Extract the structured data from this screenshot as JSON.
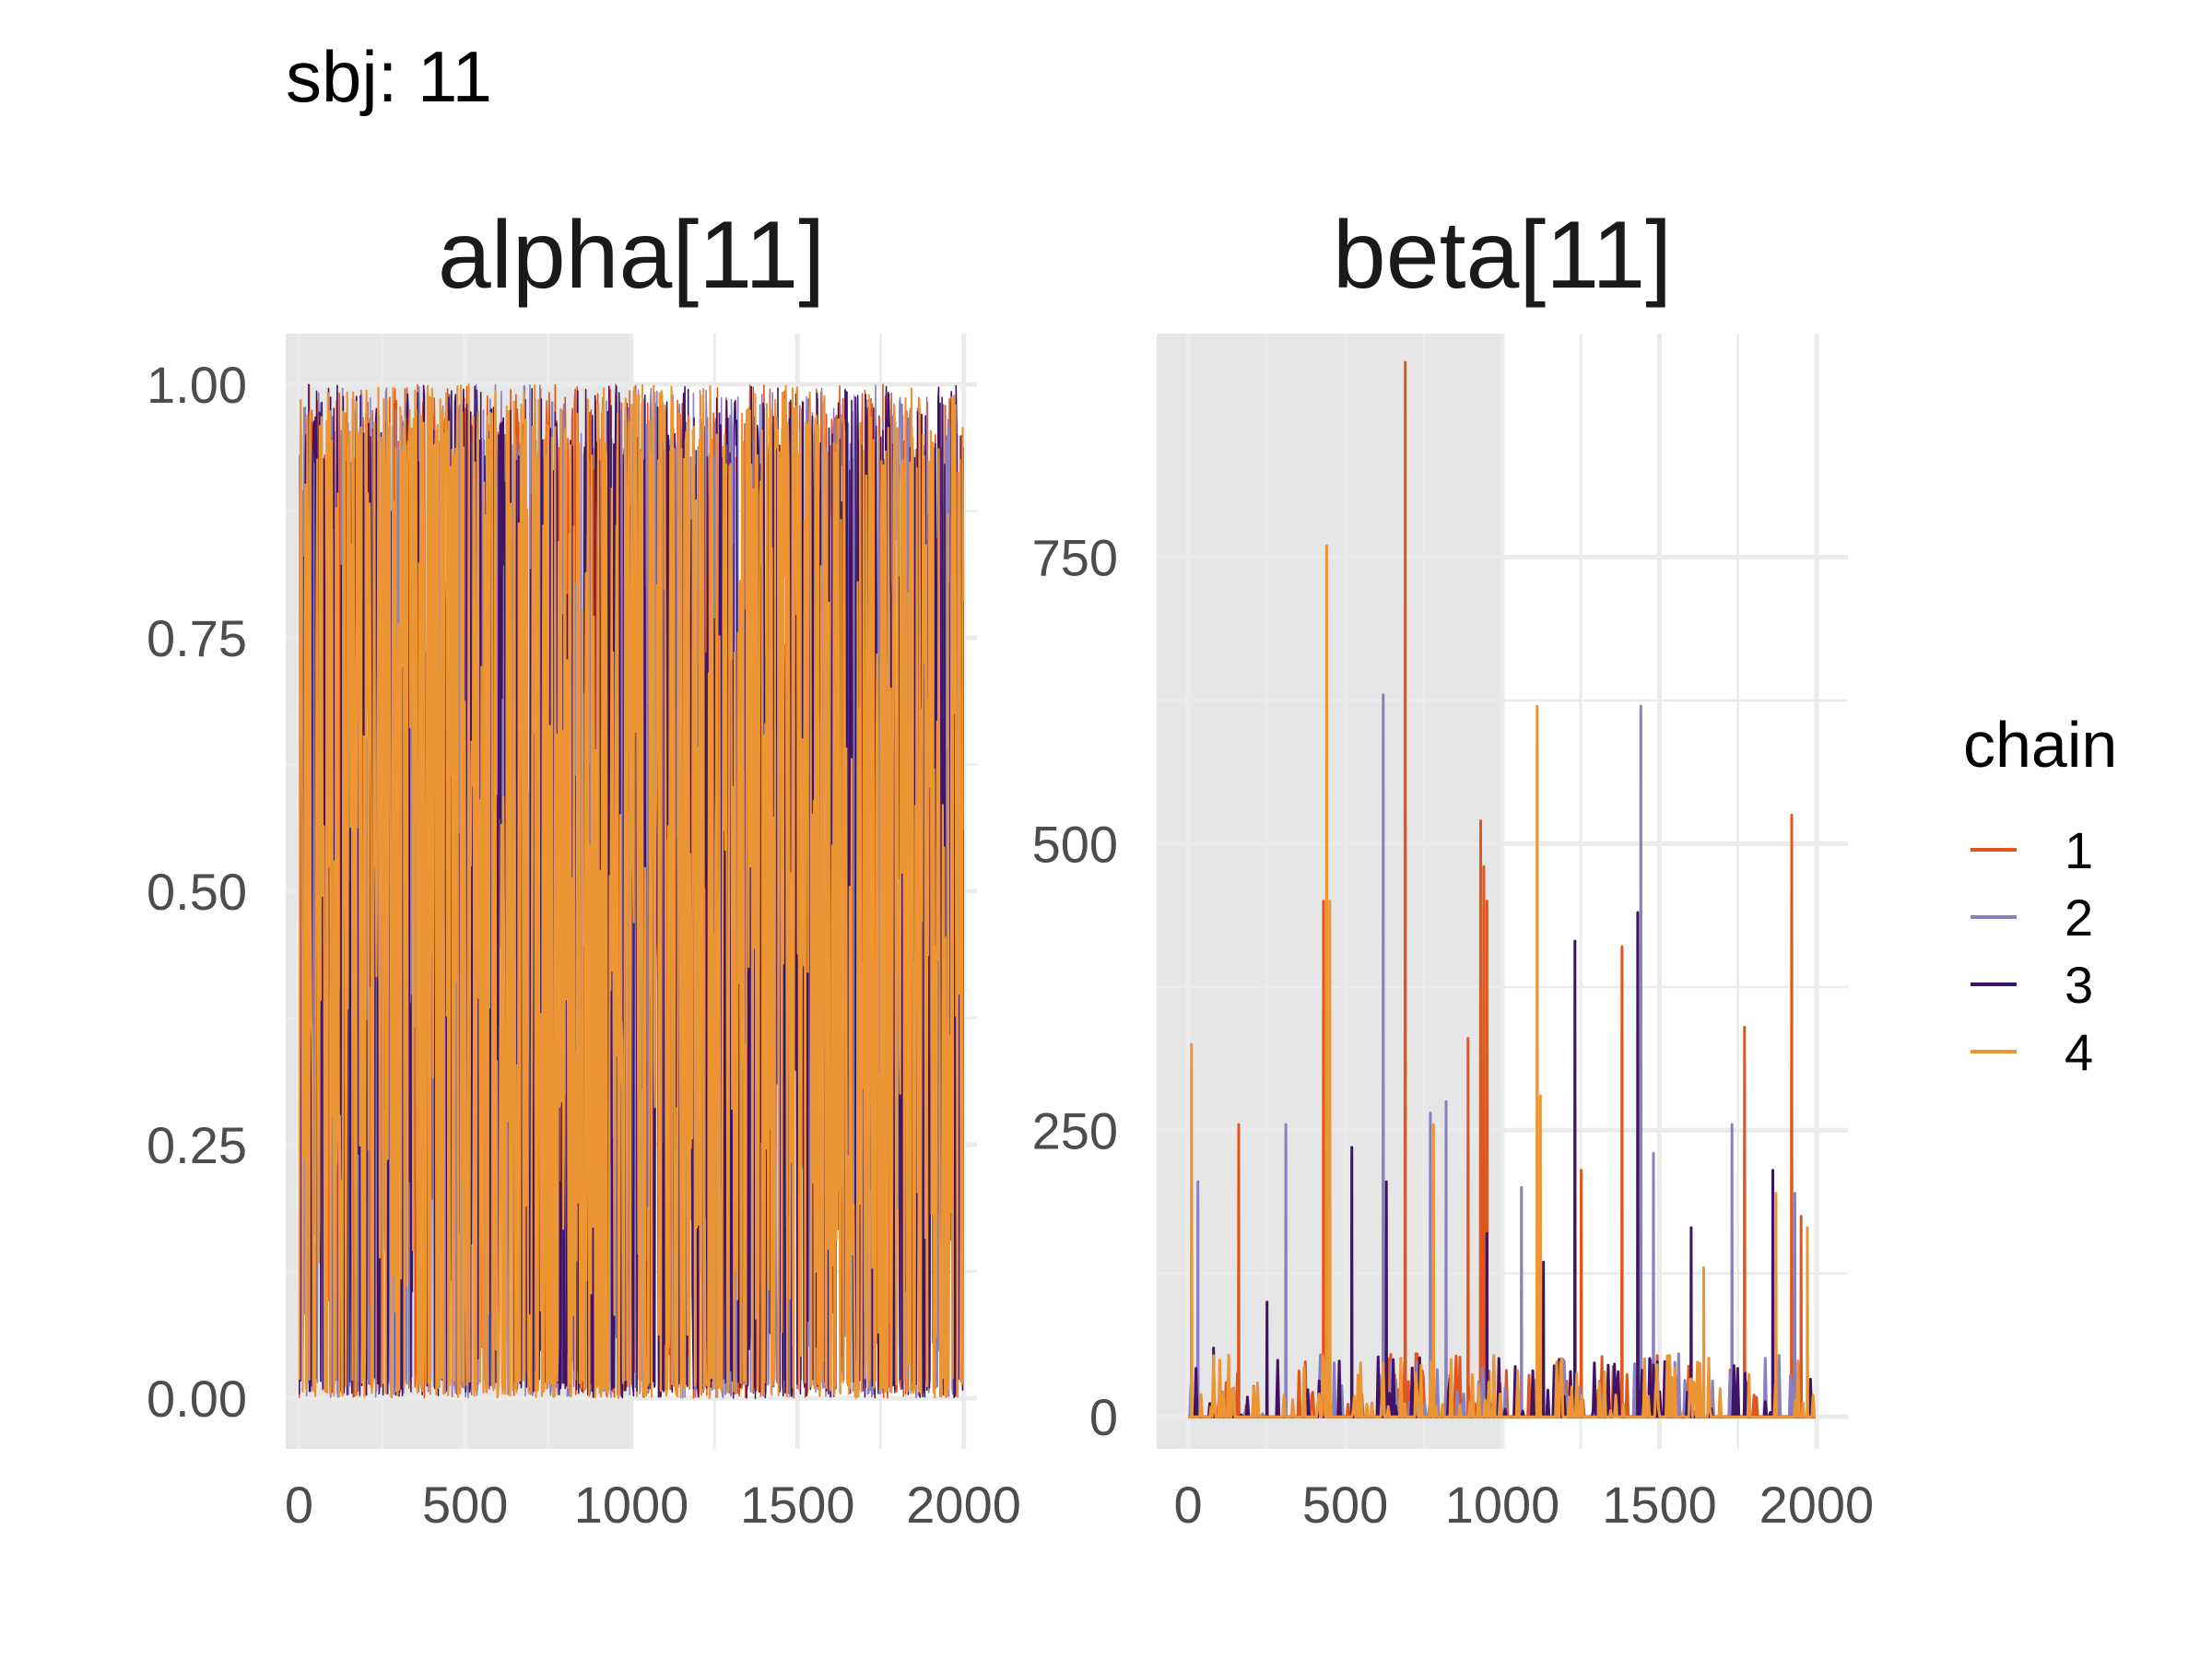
{
  "figure": {
    "title": "sbj: 11",
    "warmup_shading_color": "#e6e6e6",
    "grid_color": "#ebebeb"
  },
  "legend": {
    "title": "chain",
    "position": "right",
    "entries": [
      {
        "label": "1",
        "color": "#e0561c"
      },
      {
        "label": "2",
        "color": "#8a7fbf"
      },
      {
        "label": "3",
        "color": "#3f1466"
      },
      {
        "label": "4",
        "color": "#ec9535"
      }
    ]
  },
  "chart_data": [
    {
      "type": "line",
      "title": "alpha[11]",
      "xlabel": "",
      "ylabel": "",
      "xlim": [
        -40,
        2040
      ],
      "ylim": [
        -0.05,
        1.05
      ],
      "x_ticks": [
        0,
        500,
        1000,
        1500,
        2000
      ],
      "x_tick_labels": [
        "0",
        "500",
        "1000",
        "1500",
        "2000"
      ],
      "y_ticks": [
        0,
        0.25,
        0.5,
        0.75,
        1.0
      ],
      "y_tick_labels": [
        "0.00",
        "0.25",
        "0.50",
        "0.75",
        "1.00"
      ],
      "warmup_end": 1000,
      "grid": true,
      "iterations": 2000,
      "trace_summary": "dense traces over iterations 1-2000 spanning 0.00-1.00",
      "series": [
        {
          "name": "1",
          "color": "#e0561c",
          "min": 0.0,
          "max": 1.0,
          "mean": 0.55
        },
        {
          "name": "2",
          "color": "#8a7fbf",
          "min": 0.0,
          "max": 1.0,
          "mean": 0.55
        },
        {
          "name": "3",
          "color": "#3f1466",
          "min": 0.0,
          "max": 1.0,
          "mean": 0.55
        },
        {
          "name": "4",
          "color": "#ec9535",
          "min": 0.0,
          "max": 1.0,
          "mean": 0.55
        }
      ]
    },
    {
      "type": "line",
      "title": "beta[11]",
      "xlabel": "",
      "ylabel": "",
      "xlim": [
        -100,
        2100
      ],
      "ylim": [
        -28,
        945
      ],
      "x_ticks": [
        0,
        500,
        1000,
        1500,
        2000
      ],
      "x_tick_labels": [
        "0",
        "500",
        "1000",
        "1500",
        "2000"
      ],
      "y_ticks": [
        0,
        250,
        500,
        750
      ],
      "y_tick_labels": [
        "0",
        "250",
        "500",
        "750"
      ],
      "warmup_end": 1000,
      "grid": true,
      "iterations": 2000,
      "series": [
        {
          "name": "1",
          "color": "#e0561c",
          "spikes": [
            [
              160,
              255
            ],
            [
              430,
              450
            ],
            [
              690,
              920
            ],
            [
              890,
              330
            ],
            [
              930,
              520
            ],
            [
              940,
              480
            ],
            [
              950,
              450
            ],
            [
              1250,
              215
            ],
            [
              1380,
              410
            ],
            [
              1770,
              340
            ],
            [
              1920,
              525
            ],
            [
              1950,
              175
            ]
          ]
        },
        {
          "name": "2",
          "color": "#8a7fbf",
          "spikes": [
            [
              30,
              205
            ],
            [
              310,
              255
            ],
            [
              620,
              630
            ],
            [
              770,
              265
            ],
            [
              820,
              275
            ],
            [
              1060,
              200
            ],
            [
              1440,
              620
            ],
            [
              1480,
              230
            ],
            [
              1730,
              255
            ],
            [
              1930,
              195
            ]
          ]
        },
        {
          "name": "3",
          "color": "#3f1466",
          "spikes": [
            [
              80,
              60
            ],
            [
              250,
              100
            ],
            [
              520,
              235
            ],
            [
              630,
              205
            ],
            [
              950,
              160
            ],
            [
              1130,
              135
            ],
            [
              1230,
              415
            ],
            [
              1430,
              440
            ],
            [
              1600,
              165
            ],
            [
              1860,
              215
            ]
          ]
        },
        {
          "name": "4",
          "color": "#ec9535",
          "spikes": [
            [
              10,
              325
            ],
            [
              440,
              760
            ],
            [
              450,
              450
            ],
            [
              780,
              255
            ],
            [
              1110,
              620
            ],
            [
              1120,
              280
            ],
            [
              1640,
              130
            ],
            [
              1870,
              195
            ],
            [
              1970,
              165
            ]
          ]
        }
      ]
    }
  ]
}
